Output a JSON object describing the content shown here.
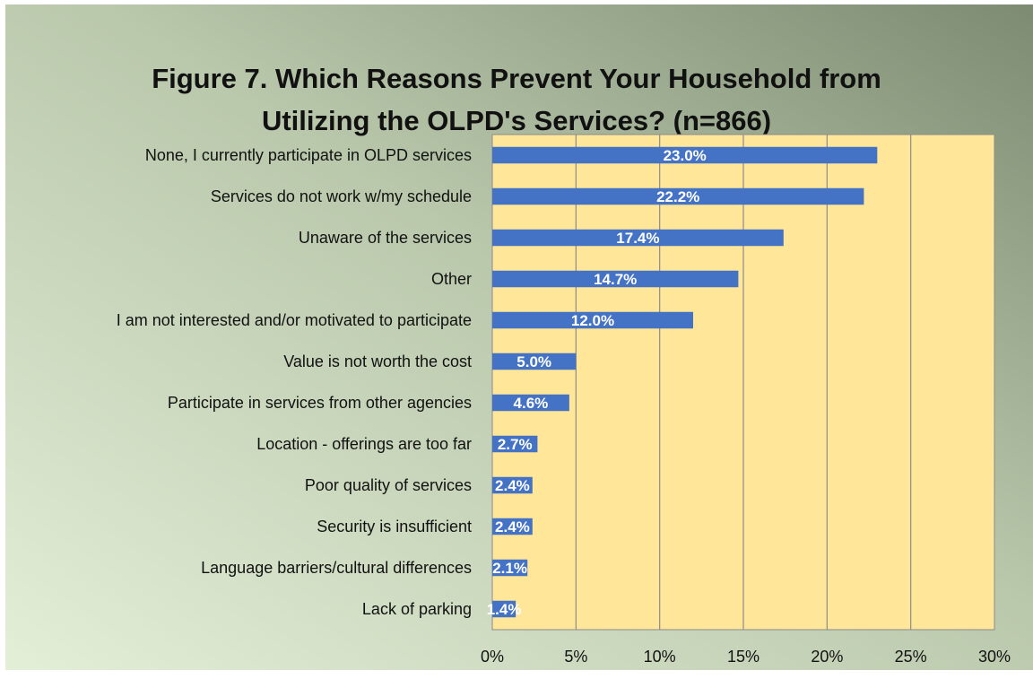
{
  "chart_data": {
    "type": "bar",
    "orientation": "horizontal",
    "title_line1": "Figure 7.  Which Reasons Prevent Your Household from",
    "title_line2": "Utilizing the OLPD's Services?  (n=866)",
    "categories": [
      "None, I currently participate in OLPD services",
      "Services do not work w/my schedule",
      "Unaware of the services",
      "Other",
      "I am not interested and/or motivated to participate",
      "Value is not worth the cost",
      "Participate in services from other agencies",
      "Location - offerings are too far",
      "Poor quality of services",
      "Security is insufficient",
      "Language barriers/cultural differences",
      "Lack of parking"
    ],
    "values": [
      23.0,
      22.2,
      17.4,
      14.7,
      12.0,
      5.0,
      4.6,
      2.7,
      2.4,
      2.4,
      2.1,
      1.4
    ],
    "data_labels": [
      "23.0%",
      "22.2%",
      "17.4%",
      "14.7%",
      "12.0%",
      "5.0%",
      "4.6%",
      "2.7%",
      "2.4%",
      "2.4%",
      "2.1%",
      "1.4%"
    ],
    "xlim": [
      0,
      30
    ],
    "x_ticks": [
      0,
      5,
      10,
      15,
      20,
      25,
      30
    ],
    "x_tick_labels": [
      "0%",
      "5%",
      "10%",
      "15%",
      "20%",
      "25%",
      "30%"
    ],
    "grid": "vertical",
    "legend": "none",
    "colors": {
      "bar": "#4472C4",
      "plot_area": "#FFE699",
      "grid": "#8c8c8c",
      "background_light": "#e3efd7",
      "background_dark": "#7d8b72"
    }
  }
}
